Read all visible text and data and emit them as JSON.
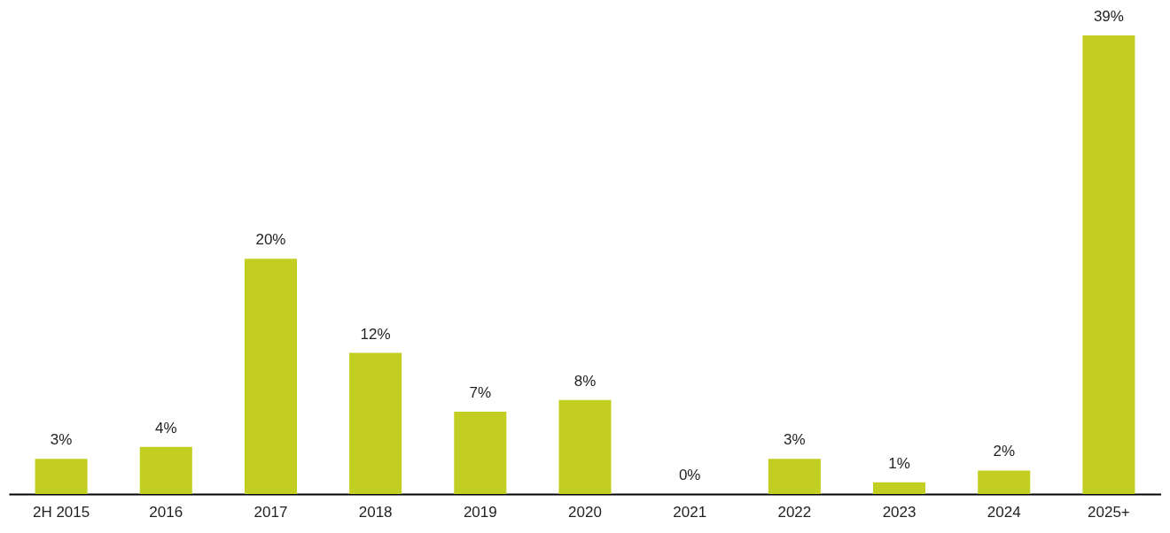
{
  "chart_data": {
    "type": "bar",
    "categories": [
      "2H 2015",
      "2016",
      "2017",
      "2018",
      "2019",
      "2020",
      "2021",
      "2022",
      "2023",
      "2024",
      "2025+"
    ],
    "values": [
      3,
      4,
      20,
      12,
      7,
      8,
      0,
      3,
      1,
      2,
      39
    ],
    "value_labels": [
      "3%",
      "4%",
      "20%",
      "12%",
      "7%",
      "8%",
      "0%",
      "3%",
      "1%",
      "2%",
      "39%"
    ],
    "color": "#c2cf22",
    "grid": false
  }
}
